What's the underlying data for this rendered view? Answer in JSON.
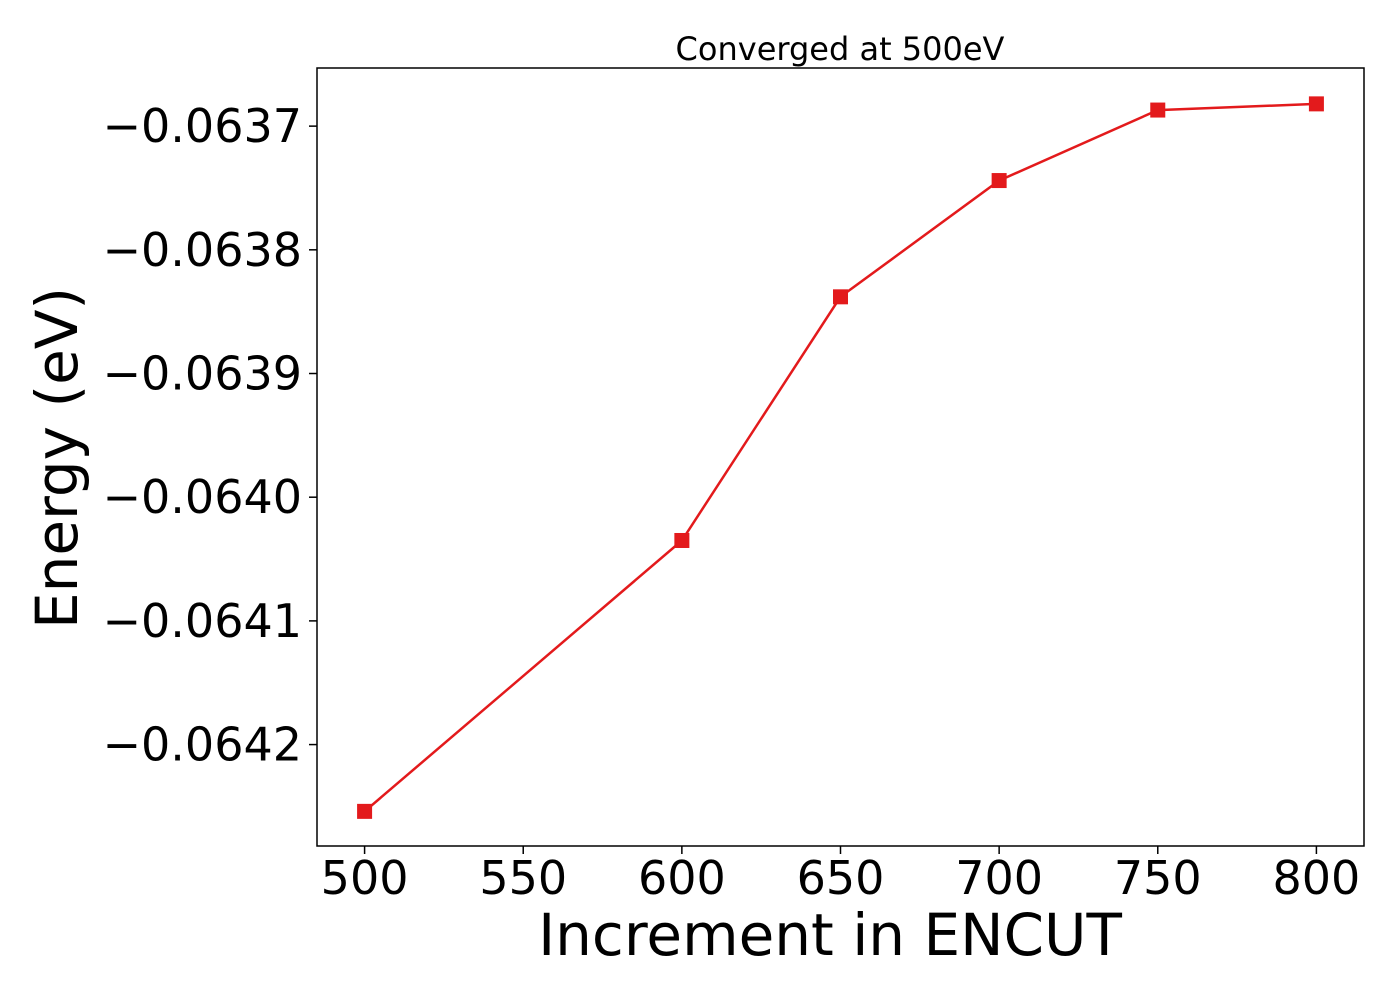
{
  "chart_data": {
    "type": "line",
    "title": "Converged at 500eV",
    "xlabel": "Increment in ENCUT",
    "ylabel": "Energy (eV)",
    "xlim": [
      485,
      815
    ],
    "ylim": [
      -0.064282,
      -0.063653
    ],
    "x_ticks": [
      500,
      550,
      600,
      650,
      700,
      750,
      800
    ],
    "x_tick_labels": [
      "500",
      "550",
      "600",
      "650",
      "700",
      "750",
      "800"
    ],
    "y_ticks": [
      -0.0642,
      -0.0641,
      -0.064,
      -0.0639,
      -0.0638,
      -0.0637
    ],
    "y_tick_labels": [
      "−0.0642",
      "−0.0641",
      "−0.0640",
      "−0.0639",
      "−0.0638",
      "−0.0637"
    ],
    "grid": false,
    "series": [
      {
        "x": [
          500,
          600,
          650,
          700,
          750,
          800
        ],
        "y": [
          -0.064254,
          -0.064035,
          -0.063838,
          -0.063744,
          -0.063687,
          -0.063682
        ],
        "color": "#e31a1c",
        "marker": "square"
      }
    ]
  }
}
